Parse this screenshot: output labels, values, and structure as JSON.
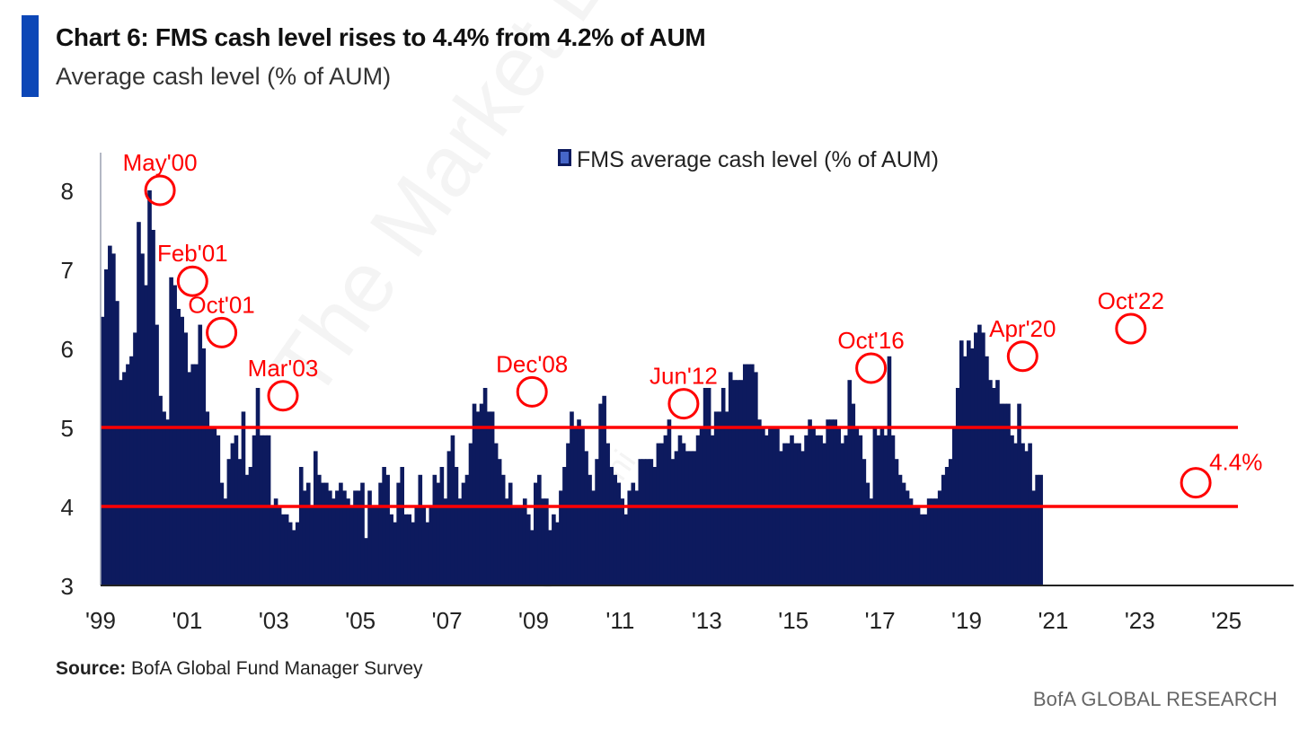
{
  "header": {
    "title": "Chart 6: FMS cash level rises to 4.4% from 4.2% of AUM",
    "subtitle": "Average cash level (% of AUM)"
  },
  "footer": {
    "source_label": "Source:",
    "source_text": " BofA Global Fund Manager Survey",
    "brand": "BofA GLOBAL RESEARCH"
  },
  "watermark": {
    "main": "The Market Eye",
    "handle": "@neilsethi"
  },
  "colors": {
    "bar": "#0d1a5e",
    "annotation": "#ff0000",
    "accent": "#0c47b7"
  },
  "chart_data": {
    "type": "bar",
    "legend": "FMS average cash level (% of AUM)",
    "legend_position": "top-center",
    "ylim": [
      3,
      8.2
    ],
    "yticks": [
      3,
      4,
      5,
      6,
      7,
      8
    ],
    "xlim": [
      1999,
      2025.6
    ],
    "xticks": [
      {
        "year": 1999,
        "label": "'99"
      },
      {
        "year": 2001,
        "label": "'01"
      },
      {
        "year": 2003,
        "label": "'03"
      },
      {
        "year": 2005,
        "label": "'05"
      },
      {
        "year": 2007,
        "label": "'07"
      },
      {
        "year": 2009,
        "label": "'09"
      },
      {
        "year": 2011,
        "label": "'11"
      },
      {
        "year": 2013,
        "label": "'13"
      },
      {
        "year": 2015,
        "label": "'15"
      },
      {
        "year": 2017,
        "label": "'17"
      },
      {
        "year": 2019,
        "label": "'19"
      },
      {
        "year": 2021,
        "label": "'21"
      },
      {
        "year": 2023,
        "label": "'23"
      },
      {
        "year": 2025,
        "label": "'25"
      }
    ],
    "start": {
      "year": 1999,
      "month": 1
    },
    "frequency": "monthly",
    "values": [
      6.4,
      7.0,
      7.3,
      7.2,
      6.6,
      5.6,
      5.7,
      5.8,
      5.9,
      6.2,
      7.6,
      7.2,
      6.8,
      8.0,
      7.5,
      6.3,
      5.4,
      5.2,
      5.1,
      6.9,
      6.8,
      6.5,
      6.4,
      6.2,
      5.7,
      5.8,
      5.8,
      6.3,
      6.0,
      5.2,
      5.0,
      5.0,
      4.9,
      4.3,
      4.1,
      4.6,
      4.8,
      4.9,
      4.6,
      5.2,
      4.4,
      4.5,
      4.9,
      5.5,
      4.9,
      4.9,
      4.9,
      4.0,
      4.1,
      4.0,
      3.9,
      3.9,
      3.8,
      3.7,
      3.8,
      4.5,
      4.2,
      4.3,
      4.0,
      4.7,
      4.4,
      4.3,
      4.3,
      4.2,
      4.1,
      4.2,
      4.3,
      4.2,
      4.1,
      4.0,
      4.2,
      4.2,
      4.3,
      3.6,
      4.2,
      4.0,
      4.0,
      4.3,
      4.5,
      4.4,
      3.9,
      3.8,
      4.3,
      4.5,
      3.9,
      3.9,
      3.8,
      4.0,
      4.4,
      4.0,
      3.8,
      4.0,
      4.4,
      4.3,
      4.5,
      4.1,
      4.7,
      4.9,
      4.5,
      4.1,
      4.3,
      4.4,
      4.8,
      5.3,
      5.2,
      5.3,
      5.5,
      5.2,
      5.2,
      4.8,
      4.6,
      4.4,
      4.1,
      4.3,
      4.0,
      4.0,
      4.0,
      4.1,
      3.9,
      3.7,
      4.3,
      4.4,
      4.1,
      4.1,
      3.7,
      3.9,
      3.8,
      4.2,
      4.5,
      4.8,
      5.2,
      5.0,
      5.1,
      5.0,
      4.7,
      4.4,
      4.2,
      4.6,
      5.3,
      5.4,
      4.8,
      4.5,
      4.4,
      4.3,
      4.1,
      3.9,
      4.2,
      4.3,
      4.2,
      4.6,
      4.6,
      4.6,
      4.6,
      4.5,
      4.8,
      4.8,
      4.9,
      5.1,
      4.6,
      4.7,
      4.9,
      4.8,
      4.7,
      4.7,
      4.7,
      4.9,
      5.0,
      5.5,
      5.5,
      4.9,
      5.2,
      5.2,
      5.5,
      5.2,
      5.7,
      5.6,
      5.6,
      5.6,
      5.8,
      5.8,
      5.8,
      5.7,
      5.1,
      5.0,
      4.9,
      5.0,
      5.0,
      5.0,
      4.7,
      4.8,
      4.8,
      4.9,
      4.8,
      4.8,
      4.7,
      4.9,
      5.1,
      5.0,
      4.9,
      4.9,
      4.8,
      5.1,
      5.1,
      5.1,
      5.0,
      4.8,
      4.9,
      5.6,
      5.3,
      5.0,
      4.9,
      4.6,
      4.3,
      4.1,
      5.0,
      4.9,
      5.0,
      4.9,
      5.9,
      4.9,
      4.6,
      4.4,
      4.3,
      4.2,
      4.1,
      4.0,
      4.0,
      3.9,
      3.9,
      4.1,
      4.1,
      4.1,
      4.2,
      4.4,
      4.5,
      4.6,
      5.0,
      5.5,
      6.1,
      5.9,
      6.1,
      6.0,
      6.2,
      6.3,
      6.2,
      5.9,
      5.6,
      5.5,
      5.6,
      5.3,
      5.3,
      5.3,
      4.9,
      4.8,
      5.3,
      4.8,
      4.7,
      4.8,
      4.2,
      4.4,
      4.4
    ],
    "reference_lines": [
      5.0,
      4.0
    ],
    "annotations": [
      {
        "label": "May'00",
        "year": 2000.33,
        "value": 8.0
      },
      {
        "label": "Feb'01",
        "year": 2001.08,
        "value": 6.85
      },
      {
        "label": "Oct'01",
        "year": 2001.75,
        "value": 6.2
      },
      {
        "label": "Mar'03",
        "year": 2003.17,
        "value": 5.4
      },
      {
        "label": "Dec'08",
        "year": 2008.92,
        "value": 5.45
      },
      {
        "label": "Jun'12",
        "year": 2012.42,
        "value": 5.3
      },
      {
        "label": "Oct'16",
        "year": 2016.75,
        "value": 5.75
      },
      {
        "label": "Apr'20",
        "year": 2020.25,
        "value": 5.9
      },
      {
        "label": "Oct'22",
        "year": 2022.75,
        "value": 6.25
      },
      {
        "label": "4.4%",
        "year": 2024.25,
        "value": 4.3
      }
    ]
  }
}
